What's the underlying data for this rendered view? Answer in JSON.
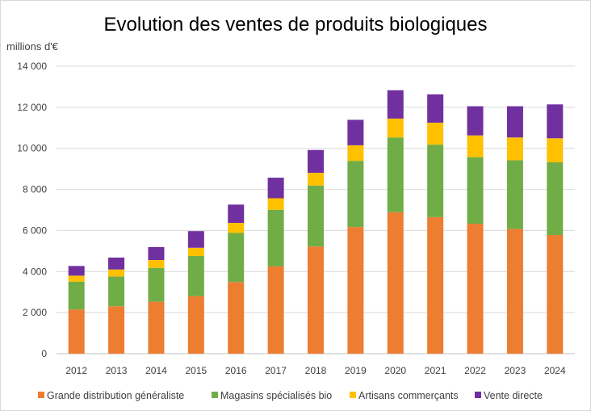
{
  "chart_data": {
    "type": "bar",
    "stacked": true,
    "title": "Evolution des ventes de produits biologiques",
    "ylabel": "millions d'€",
    "xlabel": "",
    "ylim": [
      0,
      14000
    ],
    "yticks": [
      0,
      2000,
      4000,
      6000,
      8000,
      10000,
      12000,
      14000
    ],
    "ytick_labels": [
      "0",
      "2 000",
      "4 000",
      "6 000",
      "8 000",
      "10 000",
      "12 000",
      "14 000"
    ],
    "grid": "horizontal",
    "legend_position": "bottom",
    "categories": [
      "2012",
      "2013",
      "2014",
      "2015",
      "2016",
      "2017",
      "2018",
      "2019",
      "2020",
      "2021",
      "2022",
      "2023",
      "2024"
    ],
    "series": [
      {
        "name": "Grande distribution généraliste",
        "color": "#ED7D31",
        "values": [
          2150,
          2310,
          2530,
          2800,
          3490,
          4250,
          5220,
          6170,
          6890,
          6650,
          6330,
          6070,
          5780
        ]
      },
      {
        "name": "Magasins spécialisés bio",
        "color": "#70AD47",
        "values": [
          1360,
          1450,
          1650,
          1960,
          2390,
          2760,
          2970,
          3220,
          3640,
          3530,
          3240,
          3350,
          3540
        ]
      },
      {
        "name": "Artisans commerçants",
        "color": "#FFC000",
        "values": [
          290,
          340,
          380,
          400,
          490,
          560,
          620,
          760,
          920,
          1070,
          1060,
          1110,
          1170
        ]
      },
      {
        "name": "Vente directe",
        "color": "#7030A0",
        "values": [
          470,
          580,
          630,
          810,
          890,
          1000,
          1110,
          1240,
          1380,
          1380,
          1420,
          1520,
          1650
        ]
      }
    ]
  }
}
